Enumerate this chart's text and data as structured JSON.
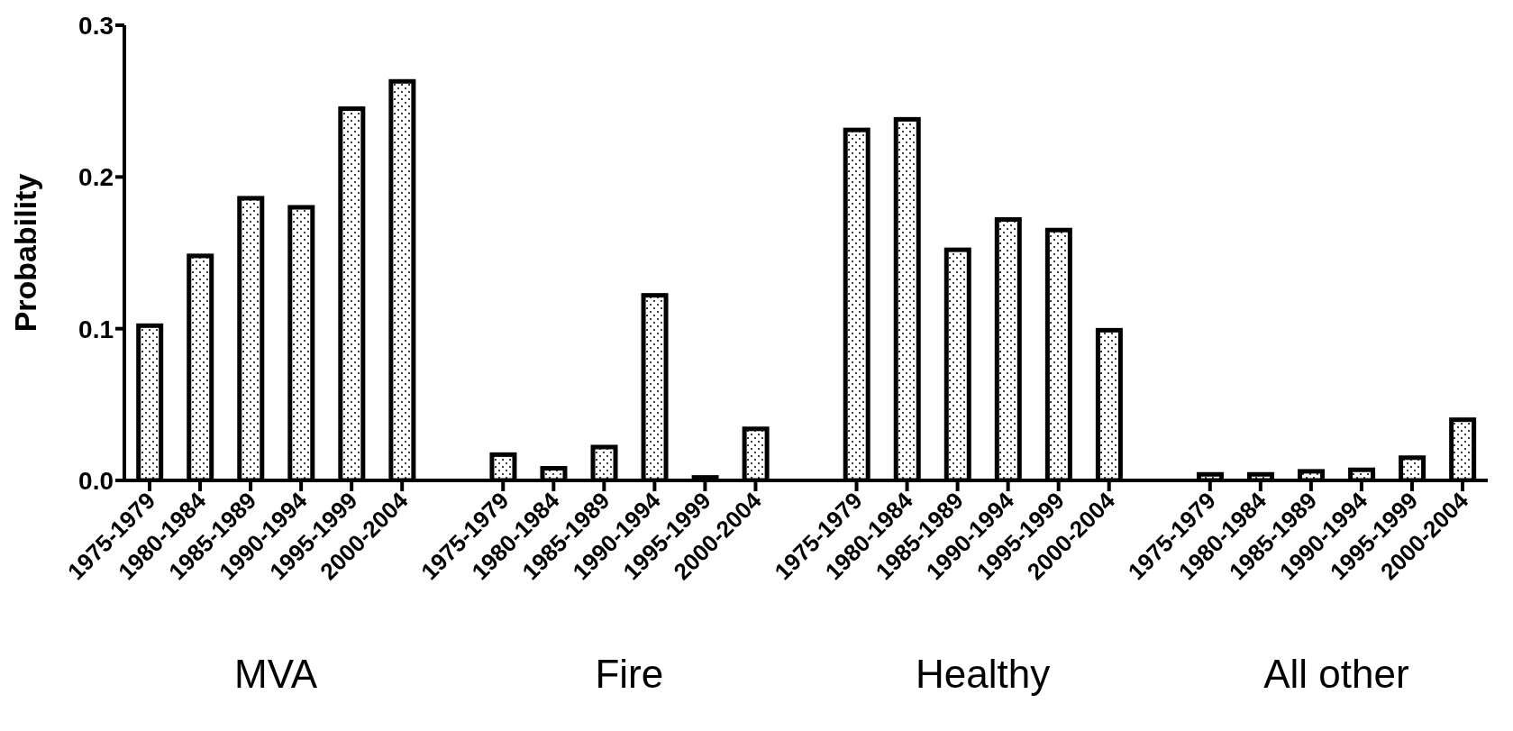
{
  "chart_data": {
    "type": "bar",
    "ylabel": "Probability",
    "categories": [
      "1975-1979",
      "1980-1984",
      "1985-1989",
      "1990-1994",
      "1995-1999",
      "2000-2004",
      null,
      "1975-1979",
      "1980-1984",
      "1985-1989",
      "1990-1994",
      "1995-1999",
      "2000-2004",
      null,
      "1975-1979",
      "1980-1984",
      "1985-1989",
      "1990-1994",
      "1995-1999",
      "2000-2004",
      null,
      "1975-1979",
      "1980-1984",
      "1985-1989",
      "1990-1994",
      "1995-1999",
      "2000-2004"
    ],
    "series": [
      {
        "color": "#000000",
        "values": [
          0.102,
          0.148,
          0.186,
          0.18,
          0.245,
          0.263,
          null,
          0.017,
          0.008,
          0.022,
          0.122,
          0.002,
          0.034,
          null,
          0.231,
          0.238,
          0.152,
          0.172,
          0.165,
          0.099,
          null,
          0.004,
          0.004,
          0.006,
          0.007,
          0.015,
          0.04
        ]
      }
    ],
    "ylim": [
      0,
      0.3
    ],
    "yticks": [
      {
        "value": 0,
        "label": "0.0"
      },
      {
        "value": 0.1,
        "label": "0.1"
      },
      {
        "value": 0.2,
        "label": "0.2"
      },
      {
        "value": 0.3,
        "label": "0.3"
      }
    ],
    "annotations": [
      "MVA",
      "Fire",
      "Healthy",
      "All other"
    ],
    "grid": false,
    "legend": false
  }
}
